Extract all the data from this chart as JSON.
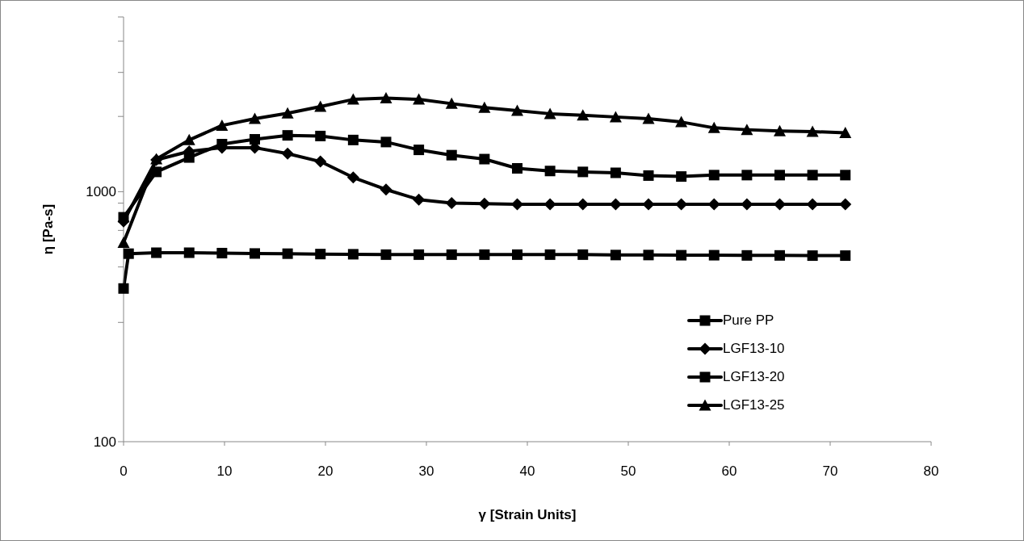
{
  "chart_data": {
    "type": "line",
    "xlabel": "γ [Strain Units]",
    "ylabel": "η [Pa-s]",
    "log": "y",
    "xlim": [
      0,
      80
    ],
    "xticks": [
      0,
      10,
      20,
      30,
      40,
      50,
      60,
      70,
      80
    ],
    "ylim": [
      100,
      5000
    ],
    "yticks": [
      100,
      {
        "value": 300,
        "label": null
      },
      {
        "value": 500,
        "label": null
      },
      {
        "value": 700,
        "label": null
      },
      {
        "value": 900,
        "label": null
      },
      1000,
      {
        "value": 2000,
        "label": null
      },
      {
        "value": 3000,
        "label": null
      },
      {
        "value": 4000,
        "label": null
      },
      {
        "value": 5000,
        "label": null
      }
    ],
    "grid": false,
    "legend": "bottom right",
    "series": [
      {
        "name": "Pure PP",
        "color": "#000000",
        "marker": "square",
        "x": [
          0,
          0.5,
          3.25,
          6.5,
          9.75,
          13,
          16.25,
          19.5,
          22.75,
          26,
          29.25,
          32.5,
          35.75,
          39,
          42.25,
          45.5,
          48.75,
          52,
          55.25,
          58.5,
          61.75,
          65,
          68.25,
          71.5
        ],
        "values": [
          410,
          565,
          570,
          570,
          568,
          566,
          565,
          563,
          562,
          560,
          560,
          560,
          560,
          560,
          560,
          560,
          558,
          558,
          557,
          557,
          556,
          556,
          555,
          555
        ]
      },
      {
        "name": "LGF13-10",
        "color": "#000000",
        "marker": "diamond",
        "x": [
          0,
          3.25,
          6.5,
          9.75,
          13,
          16.25,
          19.5,
          22.75,
          26,
          29.25,
          32.5,
          35.75,
          39,
          42.25,
          45.5,
          48.75,
          52,
          55.25,
          58.5,
          61.75,
          65,
          68.25,
          71.5
        ],
        "values": [
          760,
          1340,
          1450,
          1500,
          1500,
          1420,
          1320,
          1140,
          1020,
          930,
          900,
          895,
          890,
          890,
          890,
          890,
          890,
          890,
          890,
          890,
          890,
          890,
          890
        ]
      },
      {
        "name": "LGF13-20",
        "color": "#000000",
        "marker": "square",
        "x": [
          0,
          3.25,
          6.5,
          9.75,
          13,
          16.25,
          19.5,
          22.75,
          26,
          29.25,
          32.5,
          35.75,
          39,
          42.25,
          45.5,
          48.75,
          52,
          55.25,
          58.5,
          61.75,
          65,
          68.25,
          71.5
        ],
        "values": [
          790,
          1200,
          1370,
          1550,
          1620,
          1680,
          1670,
          1610,
          1580,
          1470,
          1400,
          1350,
          1240,
          1210,
          1200,
          1190,
          1160,
          1150,
          1165,
          1165,
          1165,
          1165,
          1165
        ]
      },
      {
        "name": "LGF13-25",
        "color": "#000000",
        "marker": "triangle",
        "x": [
          0,
          3.25,
          6.5,
          9.75,
          13,
          16.25,
          19.5,
          22.75,
          26,
          29.25,
          32.5,
          35.75,
          39,
          42.25,
          45.5,
          48.75,
          52,
          55.25,
          58.5,
          61.75,
          65,
          68.25,
          71.5
        ],
        "values": [
          625,
          1350,
          1610,
          1840,
          1960,
          2060,
          2190,
          2340,
          2370,
          2340,
          2250,
          2170,
          2110,
          2050,
          2020,
          1990,
          1960,
          1900,
          1800,
          1770,
          1750,
          1740,
          1720
        ]
      }
    ]
  }
}
